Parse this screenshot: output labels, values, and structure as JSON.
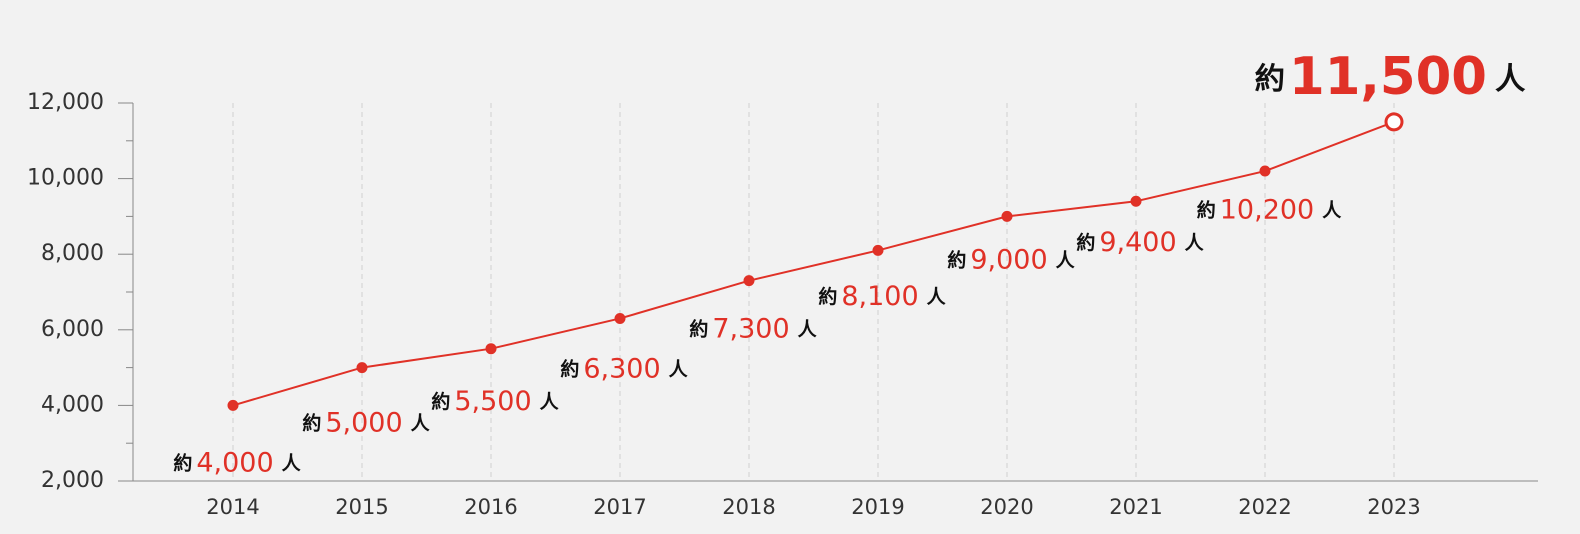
{
  "chart_data": {
    "type": "line",
    "categories": [
      "2014",
      "2015",
      "2016",
      "2017",
      "2018",
      "2019",
      "2020",
      "2021",
      "2022",
      "2023"
    ],
    "series": [
      {
        "color": "#e03127",
        "values": [
          4000,
          5000,
          5500,
          6300,
          7300,
          8100,
          9000,
          9400,
          10200,
          11500
        ],
        "value_labels": [
          "4,000",
          "5,000",
          "5,500",
          "6,300",
          "7,300",
          "8,100",
          "9,000",
          "9,400",
          "10,200",
          "11,500"
        ]
      }
    ],
    "label_prefix": "約",
    "label_suffix": "人",
    "ylim": [
      2000,
      12000
    ],
    "yticks": [
      {
        "value": 2000,
        "label": "2,000"
      },
      {
        "value": 4000,
        "label": "4,000"
      },
      {
        "value": 6000,
        "label": "6,000"
      },
      {
        "value": 8000,
        "label": "8,000"
      },
      {
        "value": 10000,
        "label": "10,000"
      },
      {
        "value": 12000,
        "label": "12,000"
      }
    ],
    "yminorticks": [
      3000,
      5000,
      7000,
      9000,
      11000
    ],
    "grid": true,
    "highlight_last": true
  }
}
